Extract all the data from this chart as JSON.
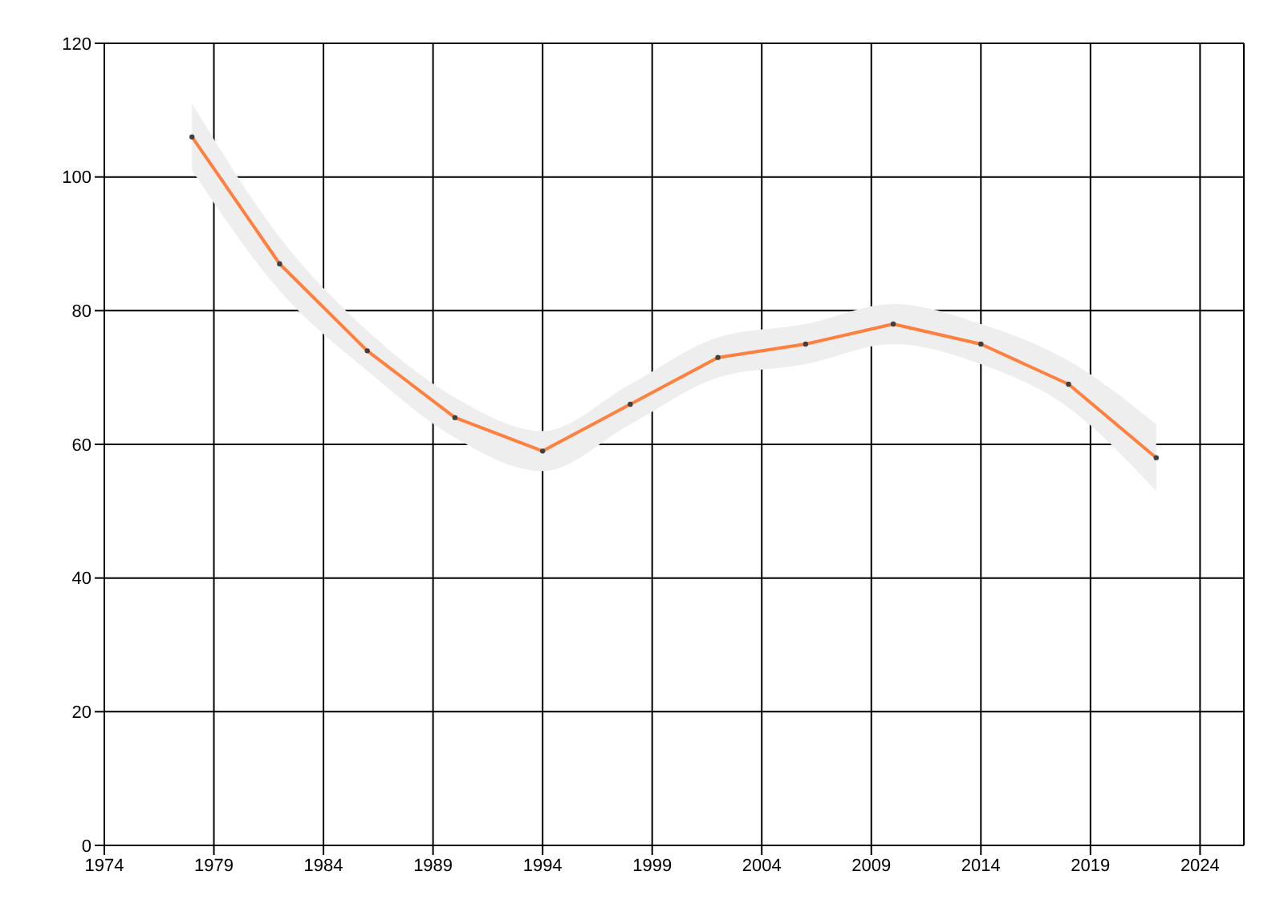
{
  "chart_data": {
    "type": "line",
    "x": [
      1978,
      1982,
      1986,
      1990,
      1994,
      1998,
      2002,
      2006,
      2010,
      2014,
      2018,
      2022
    ],
    "series": [
      {
        "color": "#ff7f3f",
        "values": [
          106,
          87,
          74,
          64,
          59,
          66,
          73,
          75,
          78,
          75,
          69,
          58
        ],
        "lower": [
          101,
          83,
          71,
          61,
          56,
          63,
          70,
          72,
          75,
          72,
          65.5,
          53
        ],
        "upper": [
          111,
          91,
          77,
          67,
          62,
          69,
          76,
          78,
          81,
          78,
          72.5,
          63
        ]
      }
    ],
    "xlim": [
      1974,
      2026
    ],
    "xticks": [
      1974,
      1979,
      1984,
      1989,
      1994,
      1999,
      2004,
      2009,
      2014,
      2019,
      2024
    ],
    "ylim": [
      0,
      120
    ],
    "yticks": [
      0,
      20,
      40,
      60,
      80,
      100,
      120
    ],
    "grid": true,
    "marker": "circle",
    "line_style": "solid"
  }
}
